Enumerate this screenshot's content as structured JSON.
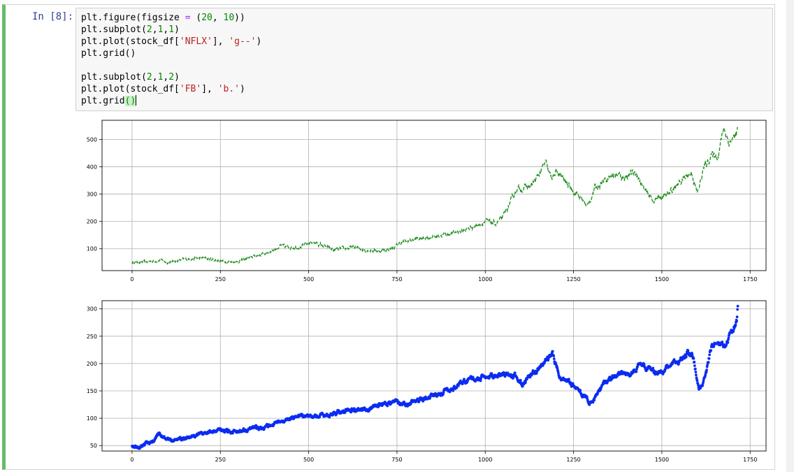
{
  "cell": {
    "prompt": "In [8]:",
    "code_lines": [
      [
        {
          "t": "plt.figure(figsize "
        },
        {
          "t": "=",
          "c": "op"
        },
        {
          "t": " ("
        },
        {
          "t": "20",
          "c": "num"
        },
        {
          "t": ", "
        },
        {
          "t": "10",
          "c": "num"
        },
        {
          "t": "))"
        }
      ],
      [
        {
          "t": "plt.subplot("
        },
        {
          "t": "2",
          "c": "num"
        },
        {
          "t": ","
        },
        {
          "t": "1",
          "c": "num"
        },
        {
          "t": ","
        },
        {
          "t": "1",
          "c": "num"
        },
        {
          "t": ")"
        }
      ],
      [
        {
          "t": "plt.plot(stock_df["
        },
        {
          "t": "'NFLX'",
          "c": "str"
        },
        {
          "t": "], "
        },
        {
          "t": "'g--'",
          "c": "str"
        },
        {
          "t": ")"
        }
      ],
      [
        {
          "t": "plt.grid()"
        }
      ],
      [
        {
          "t": ""
        }
      ],
      [
        {
          "t": "plt.subplot("
        },
        {
          "t": "2",
          "c": "num"
        },
        {
          "t": ","
        },
        {
          "t": "1",
          "c": "num"
        },
        {
          "t": ","
        },
        {
          "t": "2",
          "c": "num"
        },
        {
          "t": ")"
        }
      ],
      [
        {
          "t": "plt.plot(stock_df["
        },
        {
          "t": "'FB'",
          "c": "str"
        },
        {
          "t": "], "
        },
        {
          "t": "'b.'",
          "c": "str"
        },
        {
          "t": ")"
        }
      ],
      [
        {
          "t": "plt.grid"
        },
        {
          "t": "()",
          "c": "match"
        },
        {
          "t": "",
          "c": "cursor"
        }
      ]
    ]
  },
  "colors": {
    "nflx": "#1a8a1a",
    "fb": "#0b2cf0",
    "grid": "#b0b0b0"
  },
  "chart_data": [
    {
      "type": "line",
      "style": "dashed",
      "color": "#1a8a1a",
      "grid": true,
      "xlim": [
        -85,
        1795
      ],
      "ylim": [
        20,
        570
      ],
      "xticks": [
        0,
        250,
        500,
        750,
        1000,
        1250,
        1500,
        1750
      ],
      "yticks": [
        100,
        200,
        300,
        400,
        500
      ],
      "series": [
        {
          "keypoints": [
            [
              0,
              48
            ],
            [
              40,
              52
            ],
            [
              80,
              58
            ],
            [
              100,
              50
            ],
            [
              130,
              57
            ],
            [
              160,
              63
            ],
            [
              200,
              66
            ],
            [
              230,
              60
            ],
            [
              260,
              54
            ],
            [
              300,
              52
            ],
            [
              340,
              70
            ],
            [
              370,
              80
            ],
            [
              400,
              95
            ],
            [
              420,
              110
            ],
            [
              440,
              105
            ],
            [
              480,
              108
            ],
            [
              510,
              125
            ],
            [
              540,
              112
            ],
            [
              570,
              95
            ],
            [
              600,
              100
            ],
            [
              630,
              105
            ],
            [
              660,
              96
            ],
            [
              700,
              92
            ],
            [
              740,
              102
            ],
            [
              760,
              122
            ],
            [
              800,
              135
            ],
            [
              860,
              145
            ],
            [
              900,
              155
            ],
            [
              940,
              168
            ],
            [
              980,
              188
            ],
            [
              1000,
              200
            ],
            [
              1030,
              192
            ],
            [
              1050,
              215
            ],
            [
              1070,
              265
            ],
            [
              1090,
              320
            ],
            [
              1110,
              322
            ],
            [
              1130,
              330
            ],
            [
              1150,
              365
            ],
            [
              1170,
              415
            ],
            [
              1185,
              360
            ],
            [
              1205,
              380
            ],
            [
              1220,
              355
            ],
            [
              1240,
              325
            ],
            [
              1260,
              300
            ],
            [
              1290,
              255
            ],
            [
              1310,
              320
            ],
            [
              1330,
              345
            ],
            [
              1350,
              365
            ],
            [
              1370,
              372
            ],
            [
              1390,
              360
            ],
            [
              1410,
              375
            ],
            [
              1430,
              372
            ],
            [
              1450,
              315
            ],
            [
              1475,
              278
            ],
            [
              1500,
              290
            ],
            [
              1520,
              300
            ],
            [
              1540,
              330
            ],
            [
              1560,
              355
            ],
            [
              1585,
              380
            ],
            [
              1600,
              300
            ],
            [
              1620,
              400
            ],
            [
              1640,
              440
            ],
            [
              1660,
              445
            ],
            [
              1675,
              545
            ],
            [
              1690,
              490
            ],
            [
              1710,
              515
            ],
            [
              1715,
              540
            ]
          ]
        }
      ]
    },
    {
      "type": "scatter",
      "marker": "dot",
      "color": "#0b2cf0",
      "grid": true,
      "xlim": [
        -85,
        1795
      ],
      "ylim": [
        40,
        315
      ],
      "xticks": [
        0,
        250,
        500,
        750,
        1000,
        1250,
        1500,
        1750
      ],
      "yticks": [
        50,
        100,
        150,
        200,
        250,
        300
      ],
      "series": [
        {
          "keypoints": [
            [
              0,
              48
            ],
            [
              20,
              48
            ],
            [
              40,
              55
            ],
            [
              60,
              58
            ],
            [
              75,
              70
            ],
            [
              90,
              65
            ],
            [
              110,
              60
            ],
            [
              140,
              62
            ],
            [
              170,
              67
            ],
            [
              200,
              72
            ],
            [
              240,
              78
            ],
            [
              280,
              76
            ],
            [
              310,
              78
            ],
            [
              350,
              83
            ],
            [
              390,
              85
            ],
            [
              420,
              93
            ],
            [
              450,
              100
            ],
            [
              470,
              106
            ],
            [
              500,
              103
            ],
            [
              540,
              105
            ],
            [
              580,
              110
            ],
            [
              620,
              116
            ],
            [
              660,
              115
            ],
            [
              700,
              125
            ],
            [
              750,
              130
            ],
            [
              780,
              126
            ],
            [
              820,
              135
            ],
            [
              860,
              143
            ],
            [
              900,
              152
            ],
            [
              940,
              167
            ],
            [
              980,
              173
            ],
            [
              1020,
              177
            ],
            [
              1060,
              182
            ],
            [
              1090,
              175
            ],
            [
              1105,
              162
            ],
            [
              1130,
              180
            ],
            [
              1160,
              195
            ],
            [
              1190,
              217
            ],
            [
              1210,
              178
            ],
            [
              1240,
              165
            ],
            [
              1265,
              150
            ],
            [
              1290,
              133
            ],
            [
              1300,
              125
            ],
            [
              1320,
              150
            ],
            [
              1350,
              170
            ],
            [
              1380,
              182
            ],
            [
              1410,
              180
            ],
            [
              1440,
              202
            ],
            [
              1460,
              190
            ],
            [
              1490,
              182
            ],
            [
              1520,
              195
            ],
            [
              1550,
              205
            ],
            [
              1575,
              222
            ],
            [
              1590,
              210
            ],
            [
              1605,
              150
            ],
            [
              1625,
              180
            ],
            [
              1640,
              230
            ],
            [
              1660,
              238
            ],
            [
              1680,
              232
            ],
            [
              1700,
              262
            ],
            [
              1712,
              276
            ],
            [
              1715,
              305
            ]
          ]
        }
      ]
    }
  ]
}
